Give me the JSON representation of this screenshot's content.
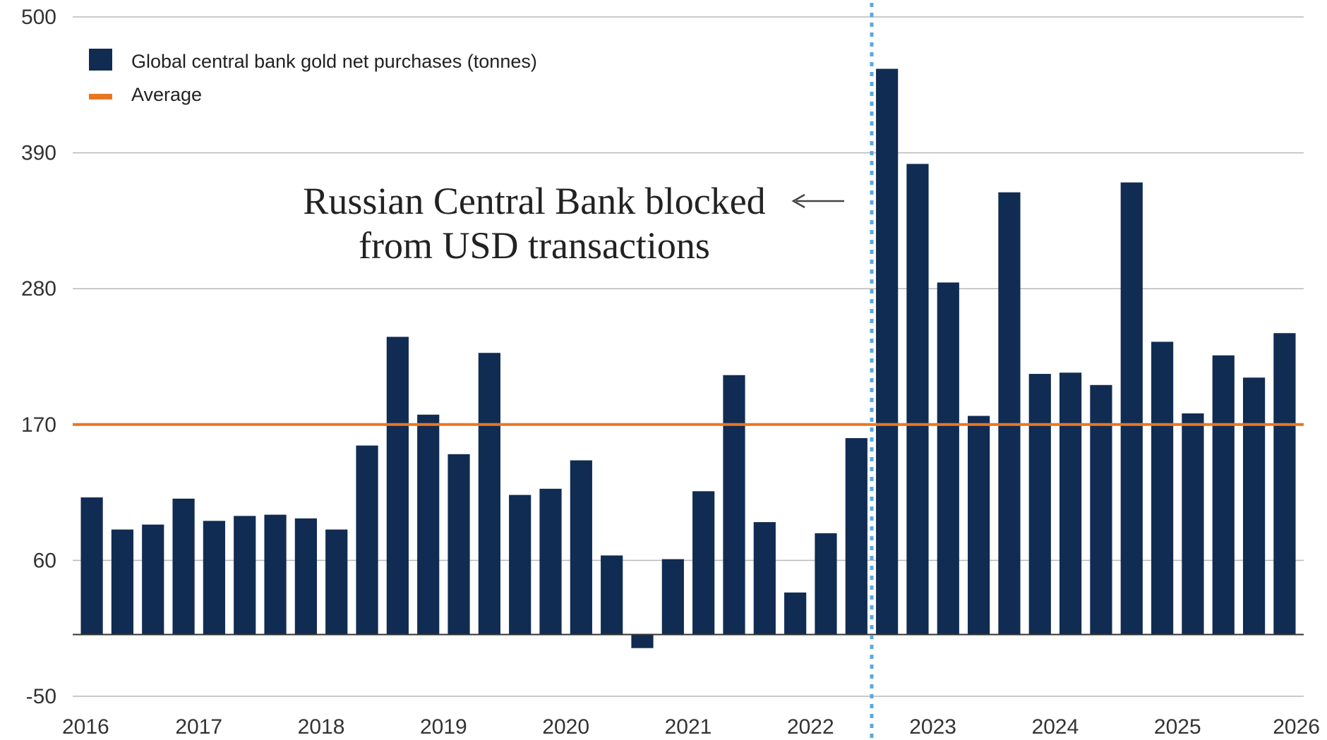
{
  "chart_data": {
    "type": "bar",
    "title": "",
    "xlabel": "",
    "ylabel": "",
    "ylim": [
      -50,
      500
    ],
    "yticks": [
      500,
      390,
      280,
      170,
      60,
      -50
    ],
    "xticks": [
      "2016",
      "2017",
      "2018",
      "2019",
      "2020",
      "2021",
      "2022",
      "2023",
      "2024",
      "2025",
      "2026"
    ],
    "grid": true,
    "legend_position": "top-left",
    "series": [
      {
        "name": "Global central bank gold net purchases (tonnes)",
        "color": "#112c52",
        "values": [
          111,
          85,
          89,
          110,
          92,
          96,
          97,
          94,
          85,
          153,
          241,
          178,
          146,
          228,
          113,
          118,
          141,
          64,
          -11,
          61,
          116,
          210,
          91,
          34,
          82,
          159,
          458,
          381,
          285,
          177,
          358,
          211,
          212,
          202,
          366,
          237,
          179,
          226,
          208,
          244
        ]
      }
    ],
    "average": {
      "name": "Average",
      "value": 170,
      "color": "#e87722"
    },
    "event_marker": {
      "position_index": 25.5,
      "color": "#5aa9de"
    },
    "annotation": {
      "lines": [
        "Russian Central Bank blocked",
        "from USD transactions"
      ]
    }
  }
}
